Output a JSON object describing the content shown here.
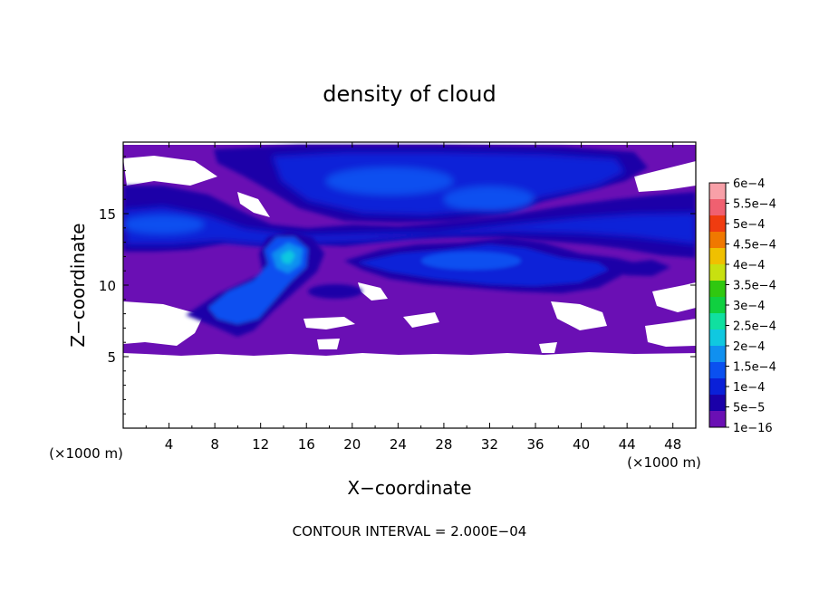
{
  "chart_data": {
    "type": "heatmap",
    "title": "density of cloud",
    "xlabel": "X−coordinate",
    "ylabel": "Z−coordinate",
    "x_unit_left": "(×1000 m)",
    "x_unit_right": "(×1000 m)",
    "footer": "CONTOUR INTERVAL = 2.000E−04",
    "xlim": [
      0,
      50
    ],
    "ylim": [
      0,
      20
    ],
    "x_ticks": [
      "4",
      "8",
      "12",
      "16",
      "20",
      "24",
      "28",
      "32",
      "36",
      "40",
      "44",
      "48"
    ],
    "y_ticks": [
      "5",
      "10",
      "15"
    ],
    "colorbar": {
      "levels": [
        "1e−16",
        "5e−5",
        "1e−4",
        "1.5e−4",
        "2e−4",
        "2.5e−4",
        "3e−4",
        "3.5e−4",
        "4e−4",
        "4.5e−4",
        "5e−4",
        "5.5e−4",
        "6e−4"
      ],
      "colors": [
        "#6a0fb4",
        "#1a00a8",
        "#0a20d8",
        "#0a50f0",
        "#1090f0",
        "#10c8e0",
        "#10e0a0",
        "#10d040",
        "#30c810",
        "#c8e010",
        "#f0c000",
        "#f07800",
        "#f03c10",
        "#f06070",
        "#f8a0a8"
      ]
    },
    "fields": {
      "background_low": "1e−16",
      "upper_band_z": [
        13,
        19
      ],
      "mid_band_z": [
        9.5,
        12
      ],
      "plume_center_x": 14,
      "plume_center_z": 11,
      "max_value_region": "1.5e−4"
    }
  }
}
